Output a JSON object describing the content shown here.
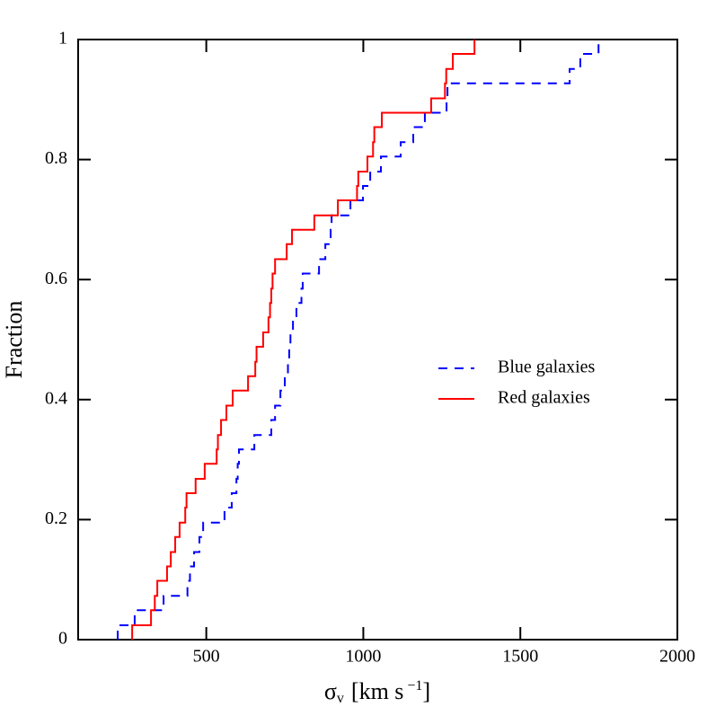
{
  "chart_data": {
    "type": "step",
    "xlabel": {
      "symbol": "σ",
      "sub": "v",
      "unit": "[km s",
      "sup": "−1",
      "close": "]"
    },
    "ylabel": "Fraction",
    "xlim": [
      92,
      2000
    ],
    "ylim": [
      0,
      1
    ],
    "xticks": [
      500,
      1000,
      1500,
      2000
    ],
    "yticks": [
      0,
      0.2,
      0.4,
      0.6,
      0.8,
      1
    ],
    "legend": "right",
    "series": [
      {
        "name": "Blue galaxies",
        "color": "#0000ff",
        "style": "dashed",
        "x": [
          218,
          272,
          364,
          440,
          448,
          461,
          478,
          490,
          558,
          581,
          596,
          600,
          604,
          653,
          707,
          719,
          736,
          750,
          760,
          764,
          768,
          776,
          787,
          803,
          807,
          859,
          879,
          896,
          899,
          959,
          999,
          1022,
          1056,
          1119,
          1159,
          1196,
          1265,
          1268,
          1657,
          1691,
          1749
        ],
        "values": [
          0.024,
          0.049,
          0.073,
          0.098,
          0.122,
          0.146,
          0.171,
          0.195,
          0.22,
          0.244,
          0.268,
          0.293,
          0.317,
          0.341,
          0.366,
          0.39,
          0.415,
          0.439,
          0.463,
          0.488,
          0.512,
          0.537,
          0.561,
          0.585,
          0.61,
          0.634,
          0.659,
          0.683,
          0.707,
          0.732,
          0.756,
          0.78,
          0.805,
          0.829,
          0.854,
          0.878,
          0.902,
          0.927,
          0.951,
          0.976,
          1.0
        ]
      },
      {
        "name": "Red galaxies",
        "color": "#ff0000",
        "style": "solid",
        "x": [
          264,
          324,
          336,
          344,
          375,
          387,
          401,
          415,
          433,
          437,
          466,
          495,
          533,
          537,
          547,
          564,
          584,
          633,
          656,
          660,
          681,
          698,
          703,
          707,
          711,
          719,
          756,
          773,
          844,
          919,
          980,
          984,
          1013,
          1031,
          1035,
          1059,
          1216,
          1260,
          1264,
          1285,
          1354
        ],
        "values": [
          0.024,
          0.049,
          0.073,
          0.098,
          0.122,
          0.146,
          0.171,
          0.195,
          0.22,
          0.244,
          0.268,
          0.293,
          0.317,
          0.341,
          0.366,
          0.39,
          0.415,
          0.439,
          0.463,
          0.488,
          0.512,
          0.537,
          0.561,
          0.585,
          0.61,
          0.634,
          0.659,
          0.683,
          0.707,
          0.732,
          0.756,
          0.78,
          0.805,
          0.829,
          0.854,
          0.878,
          0.902,
          0.927,
          0.951,
          0.976,
          1.0
        ]
      }
    ]
  }
}
